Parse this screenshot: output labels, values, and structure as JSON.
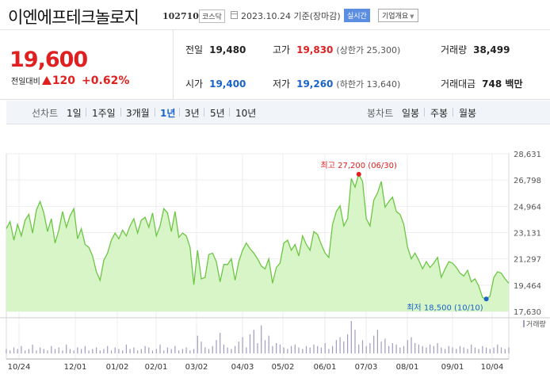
{
  "header": {
    "stock_name": "이엔에프테크놀로지",
    "stock_code": "102710",
    "market": "코스닥",
    "date": "2023.10.24 기준(장마감)",
    "realtime_label": "실시간",
    "company_info_label": "기업개요"
  },
  "price": {
    "current": "19,600",
    "change_label": "전일대비",
    "change_value": "120",
    "change_rate": "+0.62%",
    "direction": "up",
    "up_color": "#e02020",
    "down_color": "#1a63c9"
  },
  "stats": {
    "prev_close_label": "전일",
    "prev_close": "19,480",
    "open_label": "시가",
    "open": "19,400",
    "high_label": "고가",
    "high": "19,830",
    "upper_limit": "(상한가 25,300)",
    "low_label": "저가",
    "low": "19,260",
    "lower_limit": "(하한가 13,640)",
    "volume_label": "거래량",
    "volume": "38,499",
    "amount_label": "거래대금",
    "amount": "748 백만"
  },
  "period": {
    "line_label": "선차트",
    "line_items": [
      "1일",
      "1주일",
      "3개월",
      "1년",
      "3년",
      "5년",
      "10년"
    ],
    "active": "1년",
    "candle_label": "봉차트",
    "candle_items": [
      "일봉",
      "주봉",
      "월봉"
    ]
  },
  "chart_data": {
    "type": "area",
    "x_ticks": [
      "10/24",
      "12/01",
      "01/02",
      "02/01",
      "03/02",
      "04/03",
      "05/02",
      "06/01",
      "07/03",
      "08/01",
      "09/01",
      "10/04"
    ],
    "y_ticks": [
      "28,631",
      "26,798",
      "24,964",
      "23,131",
      "21,297",
      "19,464",
      "17,630"
    ],
    "ylim": [
      17630,
      28631
    ],
    "grid": true,
    "line_color": "#6cc644",
    "fill_color": "#d8f5c8",
    "series": [
      {
        "values": [
          23400,
          23900,
          22600,
          23700,
          22900,
          24000,
          24400,
          23100,
          24700,
          25300,
          24500,
          23200,
          24100,
          22400,
          23300,
          24600,
          23500,
          24300,
          24800,
          22700,
          23400,
          22300,
          22100,
          21500,
          20400,
          19800,
          21200,
          21700,
          22600,
          23100,
          22700,
          23300,
          22900,
          23600,
          24100,
          23100,
          24000,
          24200,
          23500,
          24500,
          22900,
          23600,
          24800,
          24500,
          23200,
          24600,
          22800,
          23100,
          22900,
          22100,
          19500,
          21900,
          19900,
          20000,
          21600,
          21700,
          21100,
          19700,
          20900,
          20900,
          21300,
          19800,
          21100,
          21900,
          22400,
          22000,
          21700,
          21300,
          20800,
          20600,
          21300,
          19600,
          20700,
          21000,
          22400,
          22600,
          21900,
          22300,
          21500,
          22900,
          22300,
          21900,
          23200,
          23000,
          22300,
          21700,
          21400,
          23700,
          24600,
          25000,
          23600,
          24100,
          26900,
          26300,
          27200,
          26700,
          24100,
          23600,
          25400,
          25900,
          26700,
          24900,
          25300,
          25600,
          24600,
          24400,
          23700,
          22100,
          21300,
          21700,
          21200,
          20600,
          21100,
          20700,
          21000,
          21400,
          20000,
          20600,
          21100,
          21000,
          20700,
          20300,
          20100,
          20500,
          19700,
          19900,
          19400,
          18600,
          18500,
          18700,
          20000,
          20400,
          20300,
          19900,
          19600
        ]
      }
    ],
    "annotations": {
      "high_label": "최고 27,200 (06/30)",
      "low_label": "최저 18,500 (10/10)"
    },
    "volume_label": "거래량",
    "volume_color": "#a39bc0",
    "volume": [
      3,
      2,
      4,
      3,
      5,
      2,
      3,
      6,
      2,
      4,
      3,
      2,
      5,
      3,
      4,
      2,
      6,
      3,
      2,
      4,
      3,
      5,
      2,
      3,
      4,
      2,
      3,
      5,
      2,
      4,
      3,
      2,
      6,
      3,
      4,
      2,
      3,
      5,
      4,
      2,
      3,
      6,
      2,
      4,
      3,
      5,
      2,
      3,
      4,
      2,
      3,
      12,
      8,
      4,
      3,
      5,
      9,
      14,
      6,
      4,
      3,
      5,
      8,
      11,
      4,
      13,
      16,
      7,
      19,
      9,
      12,
      5,
      7,
      6,
      4,
      3,
      5,
      6,
      4,
      3,
      5,
      4,
      6,
      5,
      4,
      7,
      3,
      5,
      9,
      11,
      8,
      13,
      22,
      16,
      6,
      9,
      5,
      7,
      12,
      16,
      8,
      10,
      5,
      7,
      6,
      4,
      5,
      9,
      11,
      7,
      6,
      5,
      4,
      6,
      5,
      7,
      4,
      3,
      5,
      4,
      3,
      5,
      4,
      3,
      6,
      4,
      3,
      5,
      4,
      3,
      4,
      6,
      4,
      3,
      4
    ]
  }
}
